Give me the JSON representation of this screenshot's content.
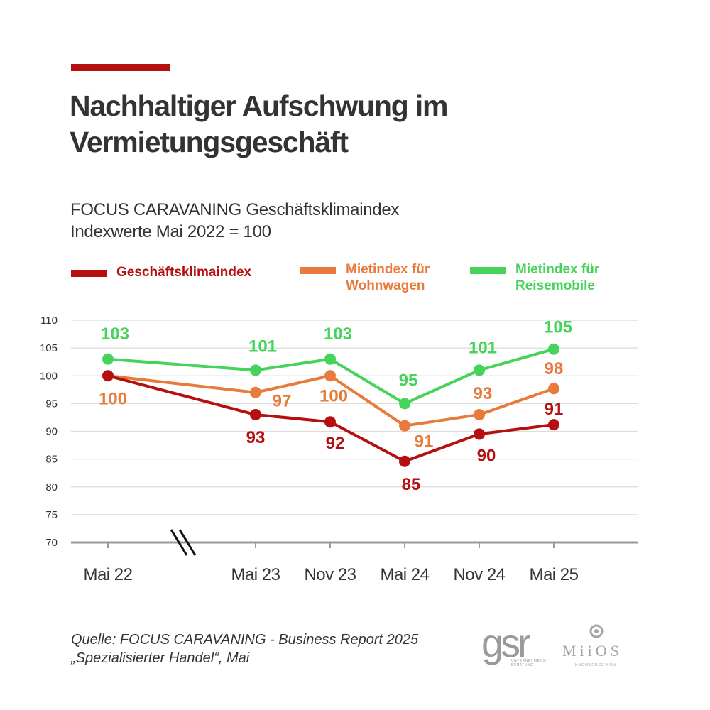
{
  "header": {
    "title_line1": "Nachhaltiger Aufschwung im",
    "title_line2": "Vermietungsgeschäft",
    "subtitle_line1": "FOCUS CARAVANING Geschäftsklimaindex",
    "subtitle_line2": "Indexwerte Mai 2022 = 100",
    "accent_color": "#b50f0f"
  },
  "legend": {
    "items": [
      {
        "line1": "Geschäftsklimaindex",
        "line2": "",
        "color": "#b50f0f"
      },
      {
        "line1": "Mietindex für",
        "line2": "Wohnwagen",
        "color": "#e87a3c"
      },
      {
        "line1": "Mietindex für",
        "line2": "Reisemobile",
        "color": "#45d35a"
      }
    ]
  },
  "chart_data": {
    "type": "line",
    "categories": [
      "Mai 22",
      "Mai 23",
      "Nov 23",
      "Mai 24",
      "Nov 24",
      "Mai 25"
    ],
    "y_ticks": [
      70,
      75,
      80,
      85,
      90,
      95,
      100,
      105,
      110
    ],
    "ylim": [
      70,
      110
    ],
    "grid": true,
    "axis_break_after": "Mai 22",
    "series": [
      {
        "name": "Geschäftsklimaindex",
        "color": "#b50f0f",
        "values": [
          100,
          93,
          91.7,
          84.6,
          89.5,
          91.2
        ],
        "labels": [
          "",
          "93",
          "92",
          "85",
          "90",
          "91"
        ]
      },
      {
        "name": "Mietindex für Wohnwagen",
        "color": "#e87a3c",
        "values": [
          100,
          97,
          100,
          91,
          93,
          97.7
        ],
        "labels": [
          "100",
          "97",
          "100",
          "91",
          "93",
          "98"
        ]
      },
      {
        "name": "Mietindex für Reisemobile",
        "color": "#45d35a",
        "values": [
          103,
          101,
          103,
          95,
          101,
          104.8
        ],
        "labels": [
          "103",
          "101",
          "103",
          "95",
          "101",
          "105"
        ]
      }
    ]
  },
  "footer": {
    "source_line1": "Quelle: FOCUS CARAVANING - Business Report 2025",
    "source_line2": "„Spezialisierter Handel“, Mai",
    "logo_gsr": "gsr",
    "logo_gsr_sub": "UNTERNEHMENS- BERATUNG",
    "logo_miios": "MiiOS",
    "logo_miios_sub": "KNOWLEDGE NOW"
  }
}
